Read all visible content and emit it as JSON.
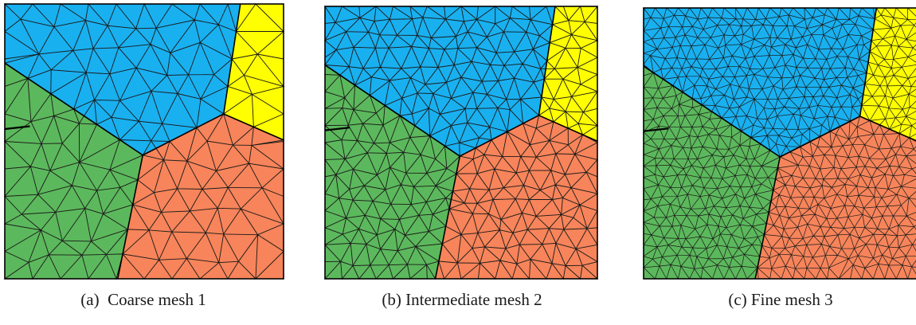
{
  "figure": {
    "panels": [
      {
        "id": "a",
        "caption": "(a)  Coarse mesh 1",
        "mesh_level": 1,
        "density": 1.0
      },
      {
        "id": "b",
        "caption": "(b) Intermediate mesh 2",
        "mesh_level": 2,
        "density": 1.55
      },
      {
        "id": "c",
        "caption": "(c) Fine mesh 3",
        "mesh_level": 3,
        "density": 2.35
      }
    ],
    "grains": [
      {
        "name": "blue",
        "color": "#19b0f0"
      },
      {
        "name": "yellow",
        "color": "#ffff00"
      },
      {
        "name": "green",
        "color": "#5cb85c"
      },
      {
        "name": "orange",
        "color": "#f7845a"
      }
    ],
    "crack_line_color": "#000000",
    "mesh_line_color": "#1a1a1a"
  }
}
